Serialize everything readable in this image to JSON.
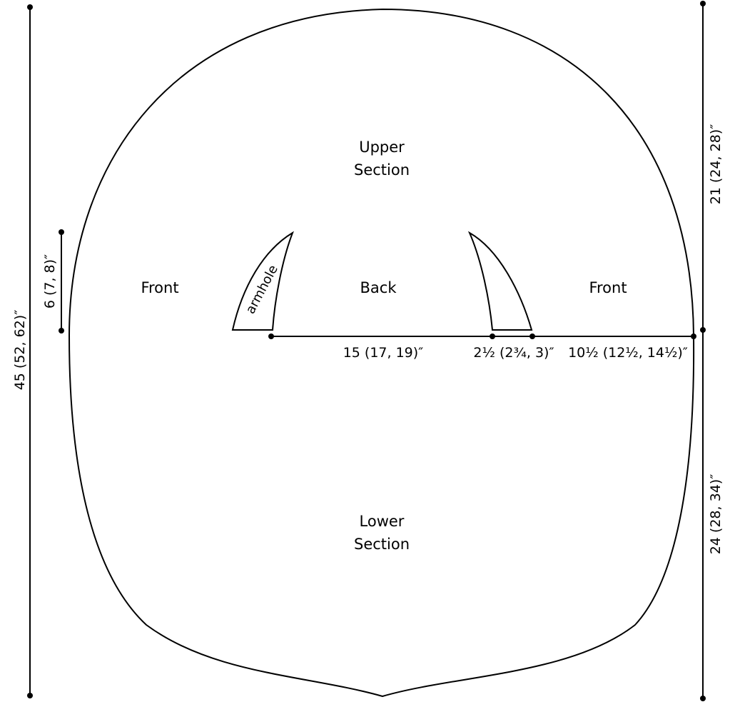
{
  "regions": {
    "upper_line1": "Upper",
    "upper_line2": "Section",
    "lower_line1": "Lower",
    "lower_line2": "Section",
    "front_left": "Front",
    "back": "Back",
    "front_right": "Front",
    "armhole": "armhole"
  },
  "dimensions": {
    "total_height": "45 (52, 62)″",
    "armhole_depth": "6 (7, 8)″",
    "back_width": "15 (17, 19)″",
    "armhole_width": "2½ (2¾, 3)″",
    "front_width": "10½ (12½, 14½)″",
    "upper_height": "21 (24, 28)″",
    "lower_height": "24 (28, 34)″"
  }
}
